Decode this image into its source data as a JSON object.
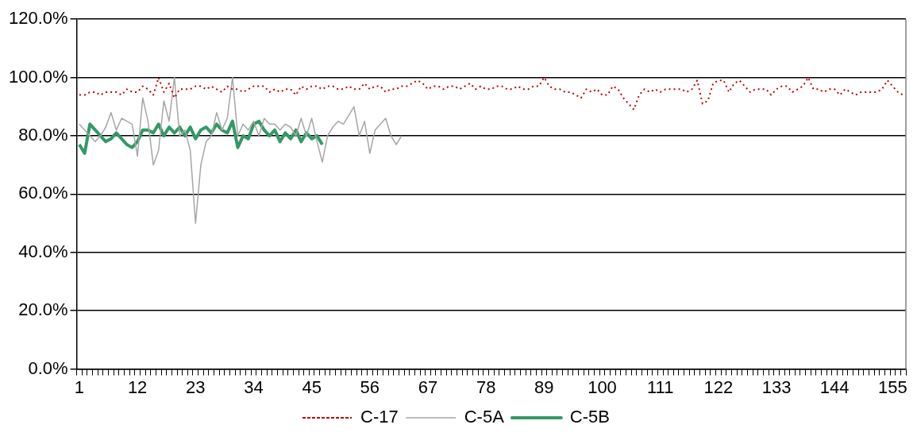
{
  "chart_data": {
    "type": "line",
    "categories": [
      "1",
      null,
      null,
      null,
      null,
      null,
      null,
      null,
      null,
      null,
      null,
      "12",
      null,
      null,
      null,
      null,
      null,
      null,
      null,
      null,
      null,
      null,
      "23",
      null,
      null,
      null,
      null,
      null,
      null,
      null,
      null,
      null,
      null,
      "34",
      null,
      null,
      null,
      null,
      null,
      null,
      null,
      null,
      null,
      null,
      "45",
      null,
      null,
      null,
      null,
      null,
      null,
      null,
      null,
      null,
      null,
      "56",
      null,
      null,
      null,
      null,
      null,
      null,
      null,
      null,
      null,
      null,
      "67",
      null,
      null,
      null,
      null,
      null,
      null,
      null,
      null,
      null,
      null,
      "78",
      null,
      null,
      null,
      null,
      null,
      null,
      null,
      null,
      null,
      null,
      "89",
      null,
      null,
      null,
      null,
      null,
      null,
      null,
      null,
      null,
      null,
      "100",
      null,
      null,
      null,
      null,
      null,
      null,
      null,
      null,
      null,
      null,
      "111",
      null,
      null,
      null,
      null,
      null,
      null,
      null,
      null,
      null,
      null,
      "122",
      null,
      null,
      null,
      null,
      null,
      null,
      null,
      null,
      null,
      null,
      "133",
      null,
      null,
      null,
      null,
      null,
      null,
      null,
      null,
      null,
      null,
      "144",
      null,
      null,
      null,
      null,
      null,
      null,
      null,
      null,
      null,
      null,
      "155",
      null,
      null
    ],
    "ylim": [
      0,
      120
    ],
    "yticks": [
      {
        "value": 0,
        "label": "0.0%"
      },
      {
        "value": 20,
        "label": "20.0%"
      },
      {
        "value": 40,
        "label": "40.0%"
      },
      {
        "value": 60,
        "label": "60.0%"
      },
      {
        "value": 80,
        "label": "80.0%"
      },
      {
        "value": 100,
        "label": "100.0%"
      },
      {
        "value": 120,
        "label": "120.0%"
      }
    ],
    "grid": "y",
    "legend": "bottom",
    "marker": "none",
    "series": [
      {
        "name": "C-17",
        "color": "#c00000",
        "line_style": "dotted",
        "values": [
          94,
          94,
          95,
          95,
          94,
          95,
          95,
          95,
          94,
          96,
          95,
          95,
          97,
          96,
          94,
          100,
          95,
          98,
          93,
          96,
          96,
          96,
          97,
          97,
          96,
          97,
          96,
          95,
          97,
          96,
          96,
          95,
          96,
          97,
          97,
          97,
          95,
          96,
          95,
          96,
          96,
          94,
          97,
          96,
          97,
          97,
          96,
          97,
          97,
          96,
          96,
          97,
          96,
          96,
          98,
          96,
          97,
          97,
          95,
          96,
          96,
          97,
          97,
          98,
          99,
          98,
          96,
          97,
          97,
          96,
          97,
          97,
          96,
          97,
          98,
          96,
          97,
          96,
          96,
          97,
          97,
          96,
          96,
          97,
          96,
          96,
          97,
          97,
          100,
          97,
          96,
          96,
          95,
          95,
          94,
          93,
          96,
          95,
          96,
          94,
          94,
          97,
          96,
          93,
          91,
          89,
          94,
          96,
          95,
          96,
          95,
          96,
          96,
          96,
          96,
          95,
          96,
          99,
          91,
          92,
          98,
          99,
          99,
          95,
          98,
          99,
          97,
          95,
          96,
          96,
          96,
          94,
          96,
          97,
          97,
          95,
          96,
          97,
          100,
          96,
          96,
          95,
          96,
          96,
          94,
          96,
          95,
          94,
          95,
          95,
          95,
          95,
          96,
          99,
          97,
          95,
          94
        ]
      },
      {
        "name": "C-5A",
        "color": "#a6a6a6",
        "line_style": "solid",
        "values": [
          84,
          82,
          80,
          78,
          80,
          83,
          88,
          82,
          86,
          85,
          84,
          73,
          93,
          85,
          70,
          75,
          92,
          85,
          100,
          80,
          82,
          75,
          50,
          70,
          78,
          80,
          88,
          82,
          86,
          100,
          80,
          84,
          82,
          85,
          80,
          86,
          84,
          84,
          82,
          84,
          83,
          80,
          86,
          80,
          86,
          78,
          71,
          80,
          83,
          85,
          84,
          87,
          90,
          80,
          85,
          74,
          82,
          84,
          86,
          80,
          77,
          80,
          null,
          null,
          null,
          null,
          null,
          null,
          null,
          null,
          null,
          null,
          null,
          null,
          null,
          null,
          null,
          null,
          null,
          null,
          null,
          null,
          null,
          null,
          null,
          null,
          null,
          null,
          null,
          null,
          null,
          null,
          null,
          null,
          null,
          null,
          null,
          null,
          null,
          null,
          null,
          null,
          null,
          null,
          null,
          null,
          null,
          null,
          null,
          null,
          null,
          null,
          null,
          null,
          null,
          null,
          null,
          null,
          null,
          null,
          null,
          null,
          null,
          null,
          null,
          null,
          null,
          null,
          null,
          null,
          null,
          null,
          null,
          null,
          null,
          null,
          null,
          null,
          null,
          null,
          null,
          null,
          null,
          null,
          null,
          null,
          null,
          null,
          null,
          null,
          null,
          null,
          null,
          null,
          null,
          null,
          null
        ]
      },
      {
        "name": "C-5B",
        "color": "#339966",
        "line_style": "solid",
        "values": [
          77,
          74,
          84,
          82,
          80,
          78,
          79,
          81,
          79,
          77,
          76,
          78,
          82,
          82,
          81,
          84,
          80,
          83,
          81,
          83,
          80,
          83,
          79,
          82,
          83,
          81,
          84,
          82,
          81,
          85,
          76,
          80,
          79,
          84,
          85,
          82,
          80,
          82,
          78,
          81,
          79,
          82,
          78,
          81,
          79,
          80,
          77,
          null,
          null,
          null,
          null,
          null,
          null,
          null,
          null,
          null,
          null,
          null,
          null,
          null,
          null,
          null,
          null,
          null,
          null,
          null,
          null,
          null,
          null,
          null,
          null,
          null,
          null,
          null,
          null,
          null,
          null,
          null,
          null,
          null,
          null,
          null,
          null,
          null,
          null,
          null,
          null,
          null,
          null,
          null,
          null,
          null,
          null,
          null,
          null,
          null,
          null,
          null,
          null,
          null,
          null,
          null,
          null,
          null,
          null,
          null,
          null,
          null,
          null,
          null,
          null,
          null,
          null,
          null,
          null,
          null,
          null,
          null,
          null,
          null,
          null,
          null,
          null,
          null,
          null,
          null,
          null,
          null,
          null,
          null,
          null,
          null,
          null,
          null,
          null,
          null,
          null,
          null,
          null,
          null,
          null,
          null,
          null,
          null,
          null,
          null,
          null,
          null,
          null,
          null,
          null,
          null,
          null,
          null,
          null,
          null,
          null
        ]
      }
    ]
  }
}
